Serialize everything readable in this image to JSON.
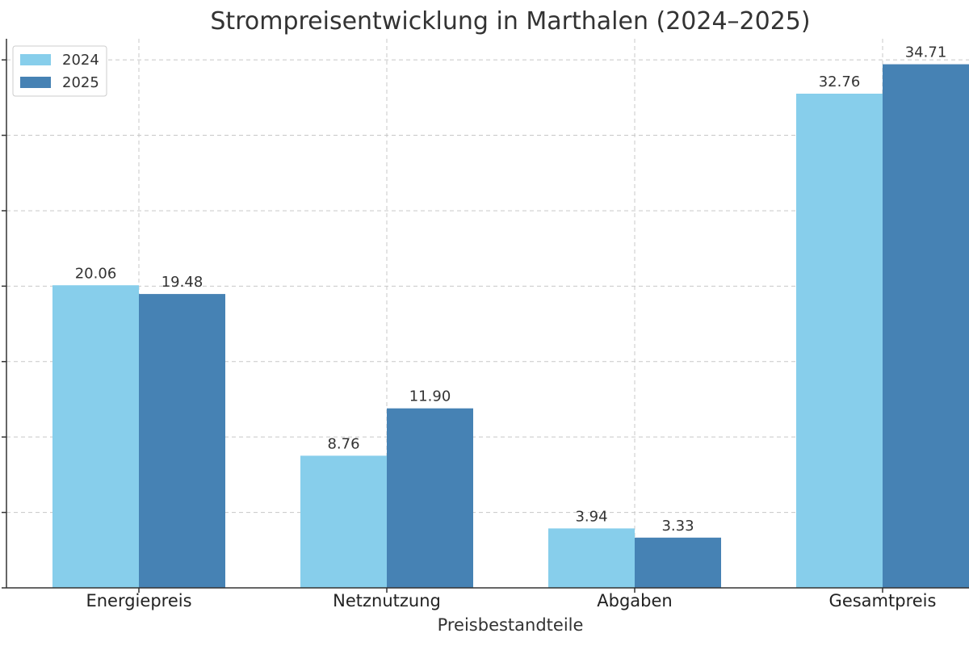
{
  "chart_data": {
    "type": "bar",
    "title": "Strompreisentwicklung in Marthalen (2024–2025)",
    "xlabel": "Preisbestandteile",
    "ylabel": "",
    "categories": [
      "Energiepreis",
      "Netznutzung",
      "Abgaben",
      "Gesamtpreis"
    ],
    "series": [
      {
        "name": "2024",
        "color": "#87CEEB",
        "values": [
          20.06,
          8.76,
          3.94,
          32.76
        ],
        "labels": [
          "20.06",
          "8.76",
          "3.94",
          "32.76"
        ]
      },
      {
        "name": "2025",
        "color": "#4682B4",
        "values": [
          19.48,
          11.9,
          3.33,
          34.71
        ],
        "labels": [
          "19.48",
          "11.90",
          "3.33",
          "34.71"
        ]
      }
    ],
    "ylim": [
      0,
      36.4
    ],
    "yticks": [
      0,
      5,
      10,
      15,
      20,
      25,
      30,
      35
    ],
    "grid": true,
    "legend_position": "top-left"
  }
}
